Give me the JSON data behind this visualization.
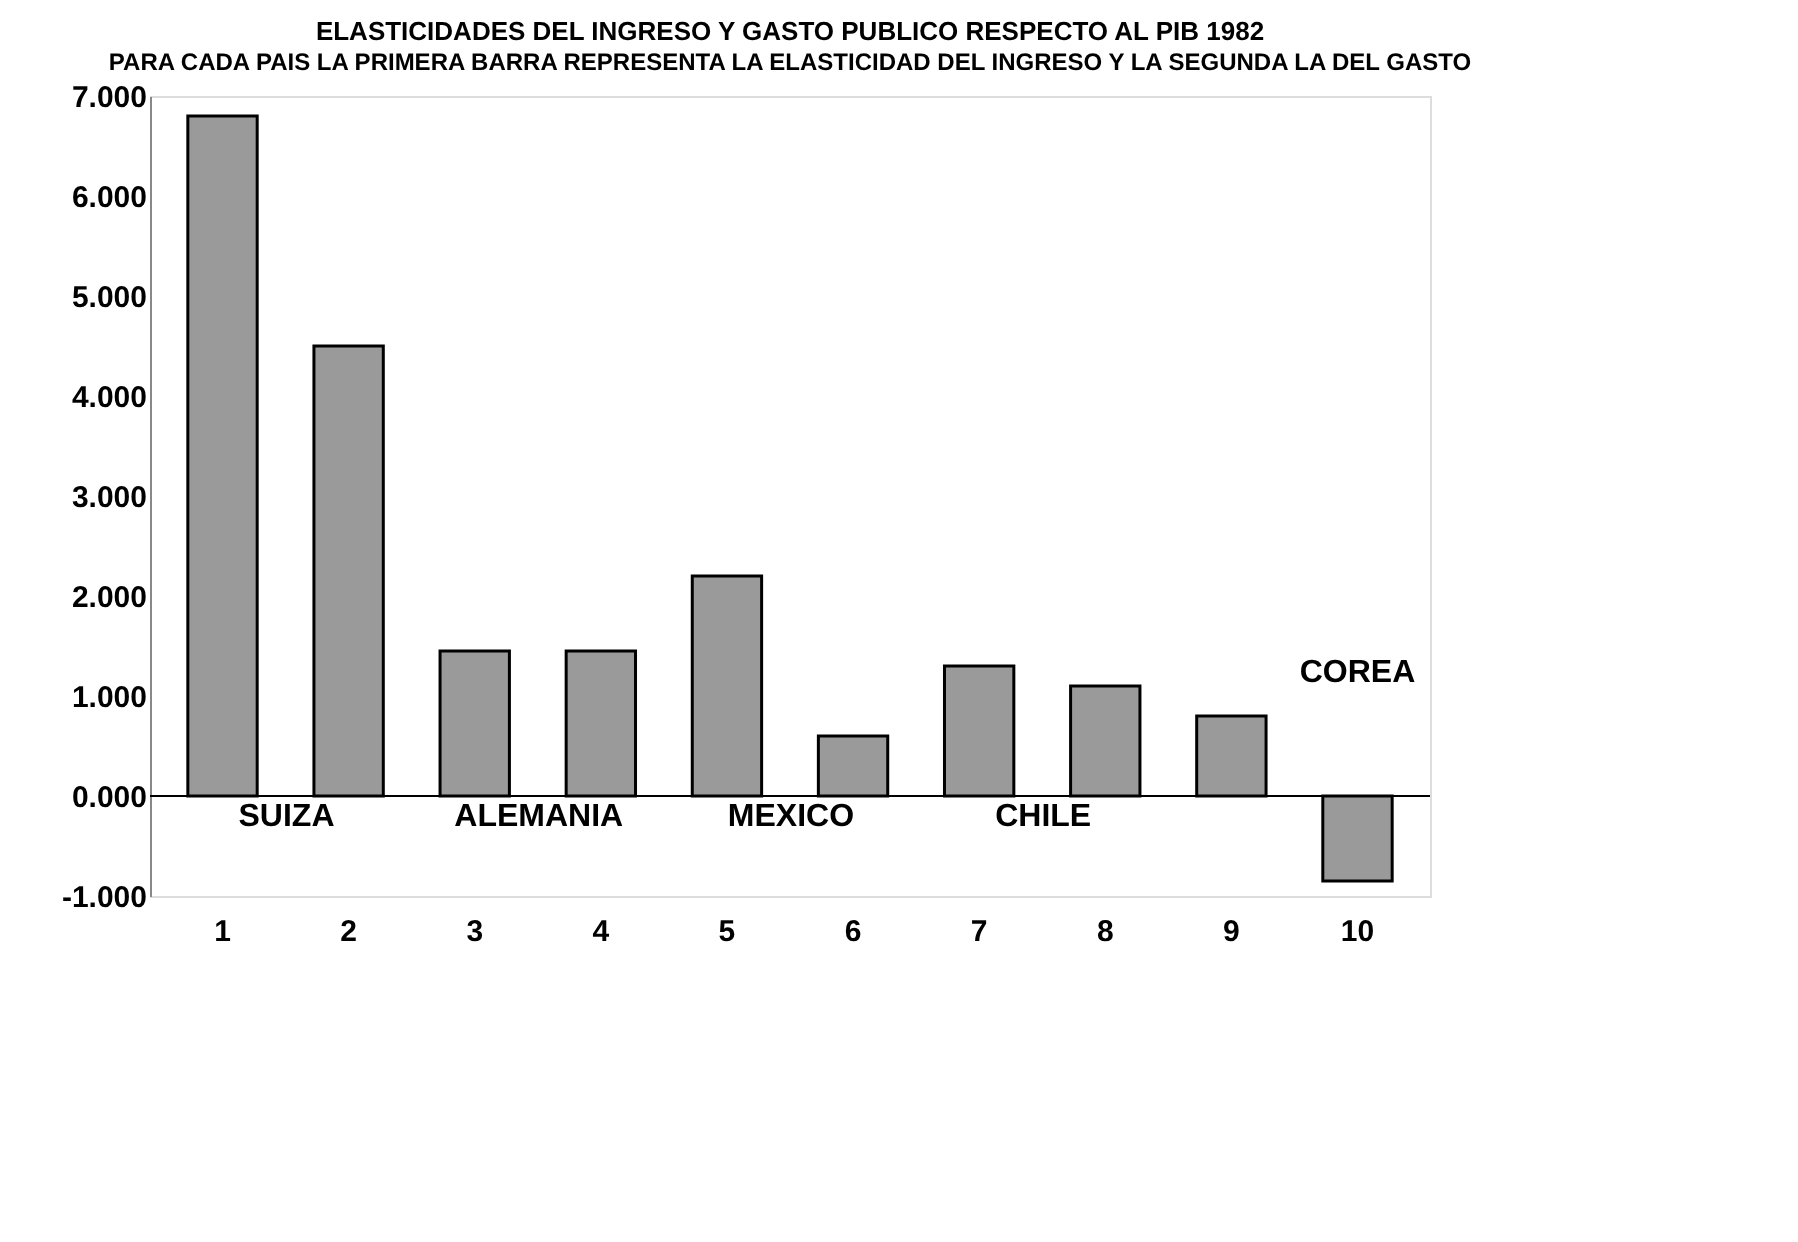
{
  "chart_data": {
    "type": "bar",
    "title": "ELASTICIDADES DEL INGRESO Y GASTO PUBLICO RESPECTO AL PIB 1982",
    "subtitle": "PARA CADA PAIS LA PRIMERA BARRA REPRESENTA LA ELASTICIDAD DEL INGRESO Y LA SEGUNDA LA DEL GASTO",
    "categories": [
      "1",
      "2",
      "3",
      "4",
      "5",
      "6",
      "7",
      "8",
      "9",
      "10"
    ],
    "values": [
      6.8,
      4.5,
      1.45,
      1.45,
      2.2,
      0.6,
      1.3,
      1.1,
      0.8,
      -0.85
    ],
    "color": "#9a9a9a",
    "ylim": [
      -1,
      7
    ],
    "yticks": [
      {
        "value": -1,
        "label": "-1.000"
      },
      {
        "value": 0,
        "label": "0.000"
      },
      {
        "value": 1,
        "label": "1.000"
      },
      {
        "value": 2,
        "label": "2.000"
      },
      {
        "value": 3,
        "label": "3.000"
      },
      {
        "value": 4,
        "label": "4.000"
      },
      {
        "value": 5,
        "label": "5.000"
      },
      {
        "value": 6,
        "label": "6.000"
      },
      {
        "value": 7,
        "label": "7.000"
      }
    ],
    "annotations": [
      "SUIZA",
      "ALEMANIA",
      "MEXICO",
      "CHILE",
      "COREA"
    ],
    "ref_lines": [
      {
        "axis": "y",
        "value": 0,
        "color": "#000000"
      }
    ],
    "grid": false
  }
}
